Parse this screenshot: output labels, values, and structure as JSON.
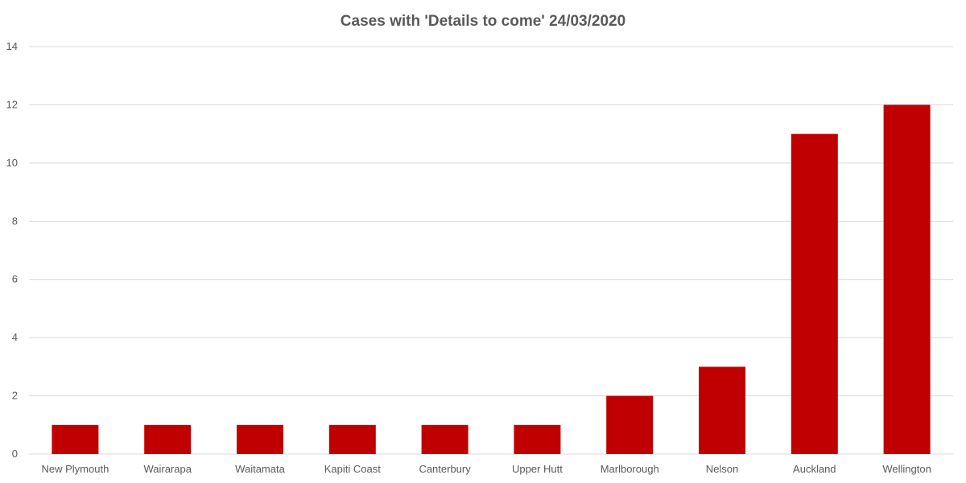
{
  "chart_data": {
    "type": "bar",
    "title": "Cases with 'Details to come' 24/03/2020",
    "categories": [
      "New Plymouth",
      "Wairarapa",
      "Waitamata",
      "Kapiti Coast",
      "Canterbury",
      "Upper Hutt",
      "Marlborough",
      "Nelson",
      "Auckland",
      "Wellington"
    ],
    "values": [
      1,
      1,
      1,
      1,
      1,
      1,
      2,
      3,
      11,
      12
    ],
    "ylim": [
      0,
      14
    ],
    "yticks": [
      0,
      2,
      4,
      6,
      8,
      10,
      12,
      14
    ],
    "grid": true,
    "legend": "none",
    "bar_color": "#C00000",
    "gridline_color": "#D9D9D9",
    "text_color": "#595959"
  }
}
